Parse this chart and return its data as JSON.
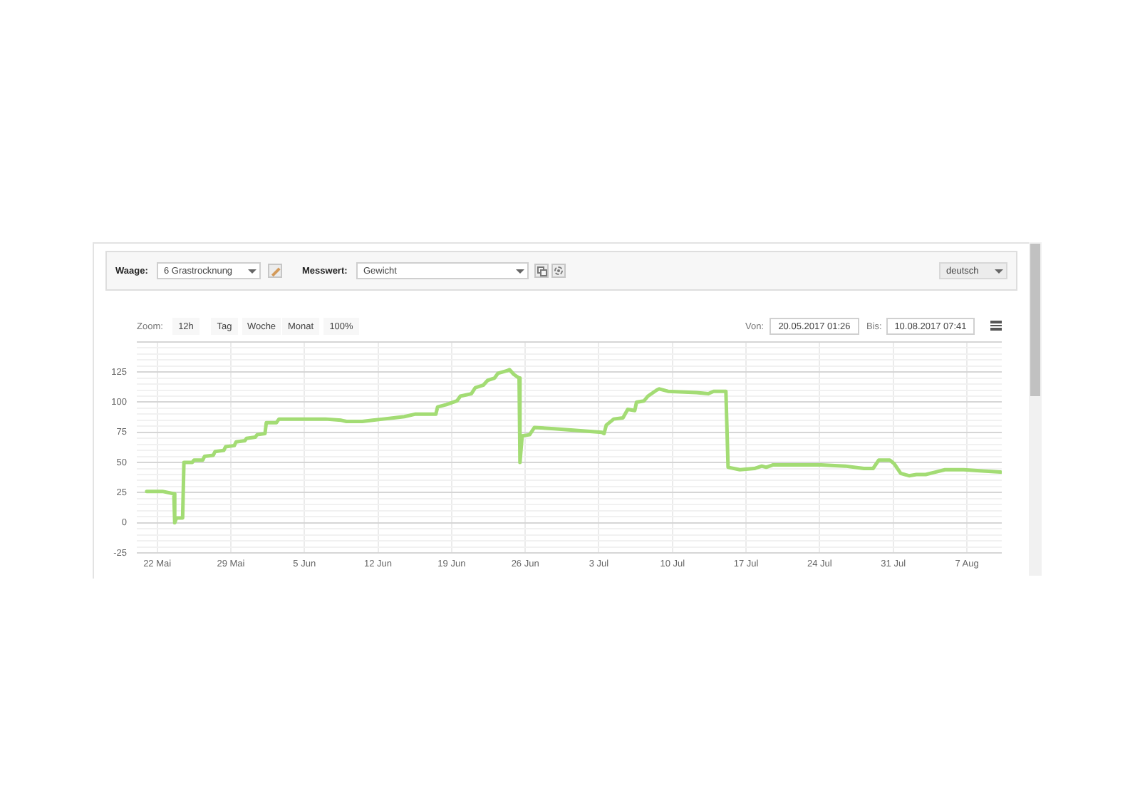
{
  "chart_data": {
    "type": "line",
    "annotations": [
      "Waage:",
      "6 Grastrocknung",
      "Messwert:",
      "Gewicht",
      "deutsch",
      "Zoom:",
      "12h",
      "Tag",
      "Woche",
      "Monat",
      "100%",
      "Von:",
      "20.05.2017 01:26",
      "Bis:",
      "10.08.2017 07:41"
    ],
    "x": [
      "2017-05-21T00:00",
      "2017-05-22T12:00",
      "2017-05-23T14:00",
      "2017-05-23T16:00",
      "2017-05-23T20:00",
      "2017-05-24T10:00",
      "2017-05-24T13:00",
      "2017-05-25T08:00",
      "2017-05-25T12:00",
      "2017-05-26T08:00",
      "2017-05-26T12:00",
      "2017-05-27T08:00",
      "2017-05-27T12:00",
      "2017-05-28T08:00",
      "2017-05-28T12:00",
      "2017-05-29T08:00",
      "2017-05-29T12:00",
      "2017-05-30T08:00",
      "2017-05-30T12:00",
      "2017-05-31T08:00",
      "2017-05-31T12:00",
      "2017-06-01T06:00",
      "2017-06-01T09:00",
      "2017-06-02T08:00",
      "2017-06-02T14:00",
      "2017-06-07T00:00",
      "2017-06-08T12:00",
      "2017-06-09T00:00",
      "2017-06-10T12:00",
      "2017-06-11T12:00",
      "2017-06-12T12:00",
      "2017-06-13T12:00",
      "2017-06-14T12:00",
      "2017-06-15T12:00",
      "2017-06-16T12:00",
      "2017-06-17T12:00",
      "2017-06-17T16:00",
      "2017-06-18T12:00",
      "2017-06-19T12:00",
      "2017-06-19T20:00",
      "2017-06-20T21:00",
      "2017-06-21T06:00",
      "2017-06-22T00:00",
      "2017-06-22T10:00",
      "2017-06-23T02:00",
      "2017-06-23T10:00",
      "2017-06-24T06:00",
      "2017-06-24T12:00",
      "2017-06-24T22:00",
      "2017-06-25T10:00",
      "2017-06-25T12:00",
      "2017-06-25T17:00",
      "2017-06-26T10:00",
      "2017-06-26T21:00",
      "2017-06-28T18:00",
      "2017-07-03T07:00",
      "2017-07-03T12:00",
      "2017-07-03T17:00",
      "2017-07-04T10:00",
      "2017-07-05T07:00",
      "2017-07-05T18:00",
      "2017-07-06T10:00",
      "2017-07-06T14:00",
      "2017-07-07T07:00",
      "2017-07-07T16:00",
      "2017-07-08T12:00",
      "2017-07-08T18:00",
      "2017-07-09T14:00",
      "2017-07-12T07:00",
      "2017-07-13T10:00",
      "2017-07-13T22:00",
      "2017-07-15T02:00",
      "2017-07-15T07:00",
      "2017-07-16T10:00",
      "2017-07-17T19:00",
      "2017-07-18T12:00",
      "2017-07-18T22:00",
      "2017-07-19T14:00",
      "2017-07-20T07:00",
      "2017-07-21T22:00",
      "2017-07-24T03:00",
      "2017-07-26T10:00",
      "2017-07-28T05:00",
      "2017-07-29T02:00",
      "2017-07-29T15:00",
      "2017-07-30T16:00",
      "2017-07-31T02:00",
      "2017-07-31T17:00",
      "2017-08-01T12:00",
      "2017-08-02T05:00",
      "2017-08-03T02:00",
      "2017-08-04T00:00",
      "2017-08-04T22:00",
      "2017-08-06T17:00",
      "2017-08-08T12:00",
      "2017-08-10T05:00"
    ],
    "series": [
      {
        "color": "#a3dc74",
        "values": [
          26,
          26,
          24,
          0,
          4,
          4,
          50,
          50,
          52,
          52,
          55,
          56,
          59,
          60,
          63,
          64,
          67,
          68,
          70,
          71,
          73,
          74,
          83,
          83,
          86,
          86,
          85,
          84,
          84,
          85,
          86,
          87,
          88,
          90,
          90,
          90,
          96,
          98,
          101,
          105,
          107,
          112,
          114,
          118,
          120,
          124,
          126,
          127,
          123,
          120,
          50,
          72,
          73,
          79,
          78,
          75,
          74,
          81,
          86,
          87,
          94,
          93,
          100,
          101,
          105,
          110,
          111,
          109,
          108,
          107,
          109,
          109,
          46,
          44,
          45,
          47,
          46,
          48,
          48,
          48,
          48,
          47,
          45,
          45,
          52,
          52,
          49,
          41,
          39,
          40,
          40,
          42,
          44,
          44,
          43,
          42
        ]
      }
    ],
    "xlim": [
      "2017-05-20T01:26",
      "2017-08-10T07:41"
    ],
    "xticks": [
      {
        "value": "2017-05-22",
        "label": "22 Mai"
      },
      {
        "value": "2017-05-29",
        "label": "29 Mai"
      },
      {
        "value": "2017-06-05",
        "label": "5 Jun"
      },
      {
        "value": "2017-06-12",
        "label": "12 Jun"
      },
      {
        "value": "2017-06-19",
        "label": "19 Jun"
      },
      {
        "value": "2017-06-26",
        "label": "26 Jun"
      },
      {
        "value": "2017-07-03",
        "label": "3 Jul"
      },
      {
        "value": "2017-07-10",
        "label": "10 Jul"
      },
      {
        "value": "2017-07-17",
        "label": "17 Jul"
      },
      {
        "value": "2017-07-24",
        "label": "24 Jul"
      },
      {
        "value": "2017-07-31",
        "label": "31 Jul"
      },
      {
        "value": "2017-08-07",
        "label": "7 Aug"
      }
    ],
    "ylim": [
      -25,
      150
    ],
    "yticks": [
      -25,
      {
        "value": -20,
        "label": null
      },
      {
        "value": -15,
        "label": null
      },
      {
        "value": -10,
        "label": null
      },
      {
        "value": -5,
        "label": null
      },
      0,
      {
        "value": 5,
        "label": null
      },
      {
        "value": 10,
        "label": null
      },
      {
        "value": 15,
        "label": null
      },
      {
        "value": 20,
        "label": null
      },
      25,
      {
        "value": 30,
        "label": null
      },
      {
        "value": 35,
        "label": null
      },
      {
        "value": 40,
        "label": null
      },
      {
        "value": 45,
        "label": null
      },
      50,
      {
        "value": 55,
        "label": null
      },
      {
        "value": 60,
        "label": null
      },
      {
        "value": 65,
        "label": null
      },
      {
        "value": 70,
        "label": null
      },
      75,
      {
        "value": 80,
        "label": null
      },
      {
        "value": 85,
        "label": null
      },
      {
        "value": 90,
        "label": null
      },
      {
        "value": 95,
        "label": null
      },
      100,
      {
        "value": 105,
        "label": null
      },
      {
        "value": 110,
        "label": null
      },
      {
        "value": 115,
        "label": null
      },
      {
        "value": 120,
        "label": null
      },
      125,
      {
        "value": 130,
        "label": null
      },
      {
        "value": 135,
        "label": null
      },
      {
        "value": 140,
        "label": null
      },
      {
        "value": 145,
        "label": null
      },
      {
        "value": 150,
        "label": null
      }
    ],
    "grid": true,
    "marker": "none",
    "line_style": "solid"
  }
}
